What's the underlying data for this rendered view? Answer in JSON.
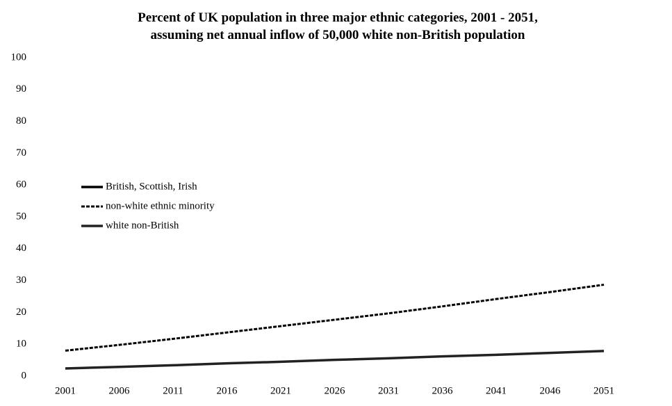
{
  "chart_data": {
    "type": "line",
    "title": "Percent of UK population in three major ethnic categories, 2001 - 2051, assuming net annual inflow of 50,000 white non-British population",
    "categories": [
      "2001",
      "2006",
      "2011",
      "2016",
      "2021",
      "2026",
      "2031",
      "2036",
      "2041",
      "2046",
      "2051"
    ],
    "series": [
      {
        "name": "British, Scottish, Irish",
        "color": "#000000",
        "line_style": "solid",
        "values": [
          null,
          null,
          null,
          null,
          null,
          null,
          null,
          null,
          null,
          null,
          null
        ]
      },
      {
        "name": "non-white ethnic minority",
        "color": "#000000",
        "line_style": "dashed",
        "values": [
          8,
          9.8,
          11.7,
          13.7,
          15.7,
          17.7,
          19.7,
          21.9,
          24.2,
          26.4,
          28.7
        ]
      },
      {
        "name": "white non-British",
        "color": "#222222",
        "line_style": "solid",
        "values": [
          2.4,
          2.9,
          3.4,
          4.0,
          4.5,
          5.1,
          5.6,
          6.2,
          6.7,
          7.3,
          7.9
        ]
      }
    ],
    "ylim": [
      0,
      100
    ],
    "yticks": [
      0,
      10,
      20,
      30,
      40,
      50,
      60,
      70,
      80,
      90,
      100
    ],
    "grid": false,
    "legend": "left"
  }
}
